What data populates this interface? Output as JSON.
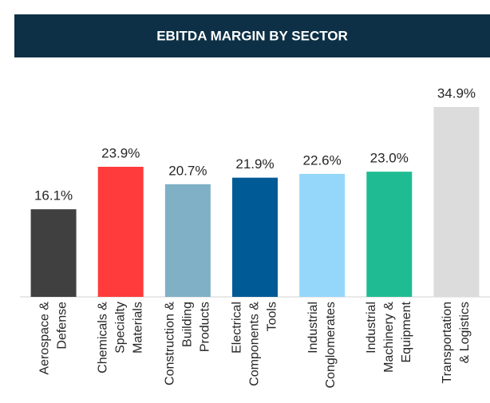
{
  "chart_data": {
    "type": "bar",
    "title": "EBITDA MARGIN BY SECTOR",
    "categories": [
      [
        "Aerospace &",
        "Defense"
      ],
      [
        "Chemicals &",
        "Specialty",
        "Materials"
      ],
      [
        "Construction &",
        "Building",
        "Products"
      ],
      [
        "Electrical",
        "Components &",
        "Tools"
      ],
      [
        "Industrial",
        "Conglomerates"
      ],
      [
        "Industrial",
        "Machinery &",
        "Equipment"
      ],
      [
        "Transportation",
        "& Logistics"
      ]
    ],
    "values": [
      16.1,
      23.9,
      20.7,
      21.9,
      22.6,
      23.0,
      34.9
    ],
    "value_labels": [
      "16.1%",
      "23.9%",
      "20.7%",
      "21.9%",
      "22.6%",
      "23.0%",
      "34.9%"
    ],
    "colors": [
      "#404040",
      "#ff3b3b",
      "#7fb0c6",
      "#005a96",
      "#94d7fb",
      "#1fbc94",
      "#dcdcdc"
    ]
  }
}
